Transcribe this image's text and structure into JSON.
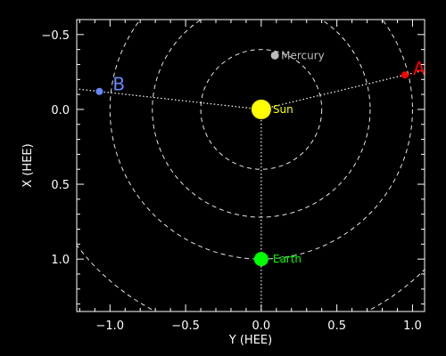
{
  "chart_data": {
    "type": "scatter",
    "title": "",
    "xlabel": "Y (HEE)",
    "ylabel": "X (HEE)",
    "xlim": [
      -1.22,
      1.08
    ],
    "ylim": [
      -0.6,
      1.35
    ],
    "y_inverted": true,
    "x_ticks": [
      -1.0,
      -0.5,
      0.0,
      0.5,
      1.0
    ],
    "x_tick_labels": [
      "−1.0",
      "−0.5",
      "0.0",
      "0.5",
      "1.0"
    ],
    "y_ticks": [
      -0.5,
      0.0,
      0.5,
      1.0
    ],
    "y_tick_labels": [
      "−0.5",
      "0.0",
      "0.5",
      "1.0"
    ],
    "orbit_radii": [
      0.4,
      0.72,
      1.0,
      1.52
    ],
    "bodies": [
      {
        "label": "Sun",
        "y_hee": 0.0,
        "x_hee": 0.0,
        "color": "#ffff00"
      },
      {
        "label": "Mercury",
        "y_hee": 0.09,
        "x_hee": -0.36,
        "color": "#bbbbbb"
      },
      {
        "label": "Earth",
        "y_hee": 0.0,
        "x_hee": 1.0,
        "color": "#00ff00"
      }
    ],
    "spacecraft": [
      {
        "label": "A",
        "y_hee": 0.95,
        "x_hee": -0.23,
        "color": "#ff0000"
      },
      {
        "label": "B",
        "y_hee": -1.07,
        "x_hee": -0.12,
        "color": "#6688ff"
      }
    ]
  }
}
